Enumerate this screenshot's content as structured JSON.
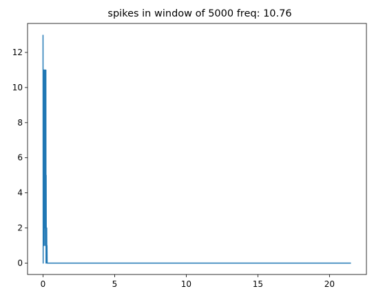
{
  "chart_data": {
    "type": "line",
    "title": "spikes in window of 5000 freq: 10.76",
    "xlabel": "",
    "ylabel": "",
    "xlim": [
      -1.08,
      22.58
    ],
    "ylim": [
      -0.65,
      13.65
    ],
    "xticks": [
      0,
      5,
      10,
      15,
      20
    ],
    "xtick_labels": [
      "0",
      "5",
      "10",
      "15",
      "20"
    ],
    "yticks": [
      0,
      2,
      4,
      6,
      8,
      10,
      12
    ],
    "ytick_labels": [
      "0",
      "2",
      "4",
      "6",
      "8",
      "10",
      "12"
    ],
    "grid": false,
    "legend": "none",
    "series": [
      {
        "color": "#1f77b4",
        "x": [
          0.0,
          0.01,
          0.02,
          0.03,
          0.04,
          0.05,
          0.06,
          0.07,
          0.08,
          0.09,
          0.1,
          0.11,
          0.12,
          0.13,
          0.14,
          0.15,
          0.16,
          0.17,
          0.18,
          0.19,
          0.2,
          0.21,
          0.22,
          0.23,
          0.24,
          0.25,
          0.26,
          0.27,
          0.28,
          0.29,
          0.3,
          21.5
        ],
        "y": [
          13,
          0,
          11,
          3,
          10,
          1,
          11,
          4,
          9,
          2,
          11,
          5,
          8,
          1,
          11,
          6,
          5,
          3,
          6,
          2,
          11,
          0,
          5,
          1,
          2,
          1,
          2,
          0,
          1,
          0,
          0,
          0
        ]
      }
    ]
  }
}
